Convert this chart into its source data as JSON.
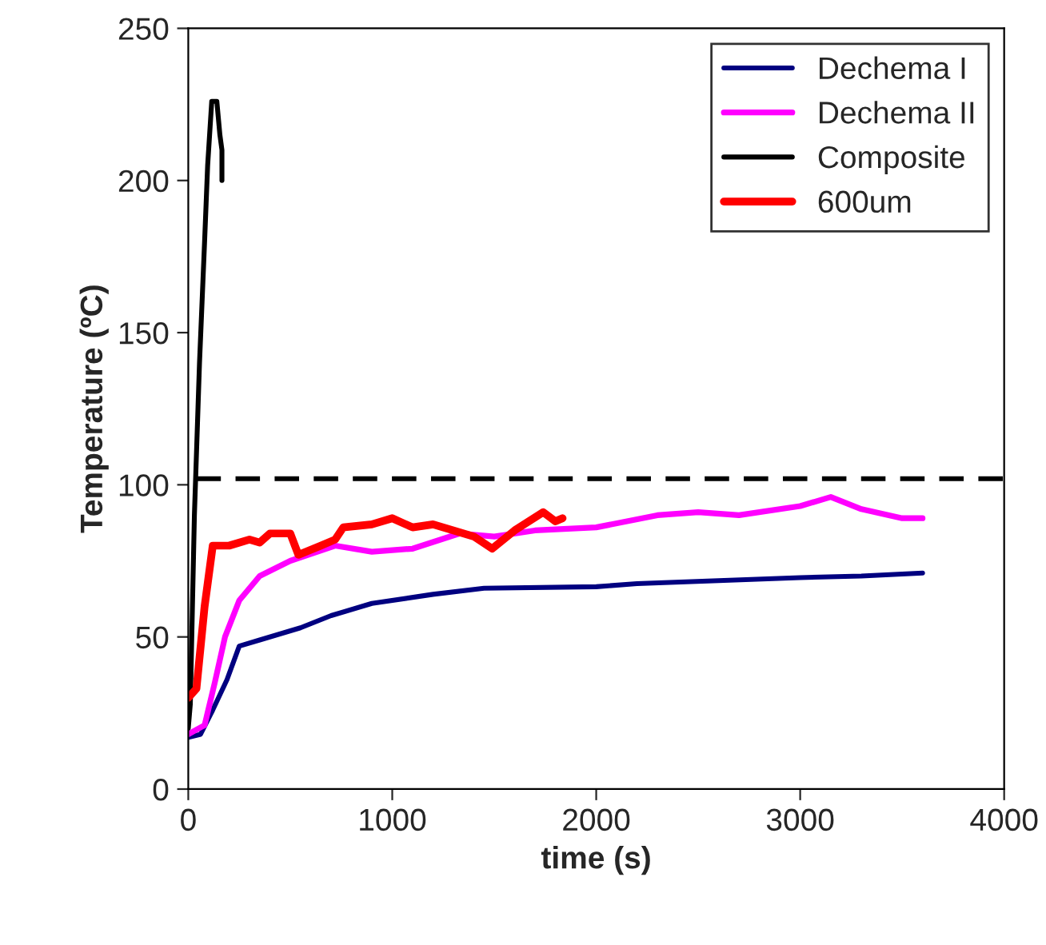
{
  "chart_data": {
    "type": "line",
    "xlabel": "time (s)",
    "ylabel": "Temperature (ºC)",
    "xlim": [
      0,
      4000
    ],
    "xticks": [
      0,
      1000,
      2000,
      3000,
      4000
    ],
    "ylim": [
      0,
      250
    ],
    "yticks": [
      0,
      50,
      100,
      150,
      200,
      250
    ],
    "grid": false,
    "legend": "top right",
    "marker": "none",
    "line_style": "solid",
    "ref_lines": [
      {
        "axis": "y",
        "value": 102,
        "color": "#000000",
        "line_style": "dashed"
      }
    ],
    "series": [
      {
        "name": "Dechema I",
        "color": "#000080",
        "x": [
          0,
          60,
          120,
          190,
          250,
          350,
          550,
          700,
          900,
          1200,
          1450,
          2000,
          2200,
          2600,
          3000,
          3300,
          3600
        ],
        "values": [
          17,
          18,
          26,
          36,
          47,
          49,
          53,
          57,
          61,
          64,
          66,
          66.5,
          67.5,
          68.5,
          69.5,
          70,
          71
        ]
      },
      {
        "name": "Dechema II",
        "color": "#ff00ff",
        "x": [
          0,
          80,
          130,
          180,
          250,
          350,
          500,
          720,
          900,
          1100,
          1330,
          1500,
          1700,
          2000,
          2300,
          2500,
          2700,
          3000,
          3150,
          3300,
          3500,
          3600
        ],
        "values": [
          18,
          21,
          35,
          50,
          62,
          70,
          75,
          80,
          78,
          79,
          84,
          83,
          85,
          86,
          90,
          91,
          90,
          93,
          96,
          92,
          89,
          89
        ]
      },
      {
        "name": "Composite",
        "color": "#000000",
        "x": [
          0,
          10,
          30,
          55,
          80,
          95,
          115,
          140,
          155,
          165,
          165
        ],
        "values": [
          20,
          28,
          90,
          140,
          180,
          205,
          226,
          226,
          215,
          210,
          200
        ]
      },
      {
        "name": "600um",
        "color": "#ff0000",
        "x": [
          0,
          40,
          80,
          120,
          200,
          300,
          350,
          400,
          500,
          540,
          650,
          720,
          760,
          900,
          1000,
          1100,
          1200,
          1400,
          1490,
          1600,
          1740,
          1800,
          1835
        ],
        "values": [
          30,
          33,
          60,
          80,
          80,
          82,
          81,
          84,
          84,
          77,
          80,
          82,
          86,
          87,
          89,
          86,
          87,
          83,
          79,
          85,
          91,
          88,
          89
        ]
      }
    ]
  }
}
